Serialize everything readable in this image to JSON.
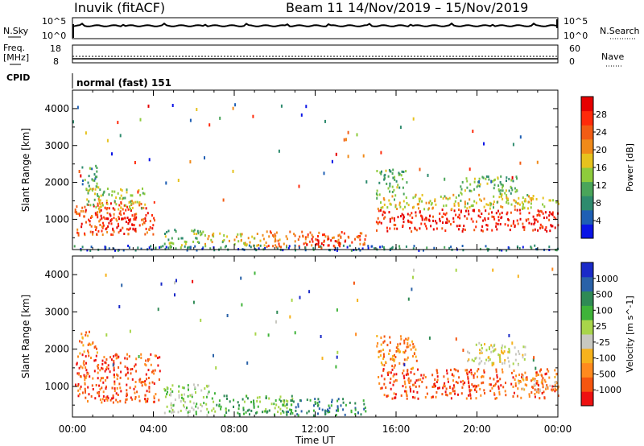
{
  "header": {
    "station": "Inuvik (fitACF)",
    "beam": "Beam 11",
    "date_range": "14/Nov/2019 – 15/Nov/2019"
  },
  "top_panels": {
    "nsky_label": "N.Sky",
    "nsky_ticks": [
      "10^5",
      "10^0"
    ],
    "nsearch_label": "N.Search",
    "nsearch_ticks": [
      "10^5",
      "10^0"
    ],
    "freq_label": "Freq.",
    "freq_unit": "[MHz]",
    "freq_ticks": [
      "18",
      "8"
    ],
    "nave_label": "Nave",
    "nave_ticks": [
      "60",
      "0"
    ],
    "cpid_label": "CPID",
    "cpid_text": "normal (fast) 151"
  },
  "colors": {
    "power_scale": [
      "#0a14e6",
      "#1e5fb4",
      "#2e8b6e",
      "#4aa55a",
      "#8ecb3c",
      "#e6c21e",
      "#f08a1a",
      "#f25c14",
      "#ff2a0a",
      "#e60000"
    ],
    "velocity_scale": [
      "#ee1111",
      "#f5550f",
      "#ff8a1e",
      "#f6b21c",
      "#c8c8c0",
      "#a8d54a",
      "#3fb339",
      "#2f8a55",
      "#2a62a8",
      "#1a2ac8"
    ]
  },
  "chart_data": [
    {
      "type": "heatmap",
      "name": "power",
      "ylabel": "Slant Range [km]",
      "ylim": [
        180,
        4500
      ],
      "xlim": [
        0,
        24
      ],
      "yticks": [
        "1000",
        "2000",
        "3000",
        "4000"
      ],
      "ytick_values": [
        1000,
        2000,
        3000,
        4000
      ],
      "colorbar_label": "Power [dB]",
      "colorbar_ticks": [
        "4",
        "8",
        "12",
        "16",
        "20",
        "24",
        "28"
      ],
      "colorbar_range": [
        0,
        30
      ],
      "regions": [
        {
          "t0": 0.1,
          "t1": 4.1,
          "r0": 600,
          "r1": 1500,
          "v": 24
        },
        {
          "t0": 0.6,
          "t1": 3.6,
          "r0": 1300,
          "r1": 1900,
          "v": 14
        },
        {
          "t0": 1.6,
          "t1": 3.3,
          "r0": 700,
          "r1": 1100,
          "v": 28
        },
        {
          "t0": 0.3,
          "t1": 1.2,
          "r0": 1900,
          "r1": 2500,
          "v": 9
        },
        {
          "t0": 4.5,
          "t1": 6.5,
          "r0": 250,
          "r1": 750,
          "v": 12
        },
        {
          "t0": 6.5,
          "t1": 9.5,
          "r0": 300,
          "r1": 650,
          "v": 16
        },
        {
          "t0": 9.5,
          "t1": 14.5,
          "r0": 250,
          "r1": 700,
          "v": 22
        },
        {
          "t0": 11.5,
          "t1": 13.5,
          "r0": 300,
          "r1": 500,
          "v": 28
        },
        {
          "t0": 15.0,
          "t1": 24.0,
          "r0": 700,
          "r1": 1300,
          "v": 27
        },
        {
          "t0": 15.0,
          "t1": 24.0,
          "r0": 1300,
          "r1": 1700,
          "v": 16
        },
        {
          "t0": 15.0,
          "t1": 16.5,
          "r0": 1700,
          "r1": 2400,
          "v": 11
        },
        {
          "t0": 19.0,
          "t1": 22.0,
          "r0": 1700,
          "r1": 2200,
          "v": 12
        },
        {
          "t0": 0.0,
          "t1": 24.0,
          "r0": 180,
          "r1": 320,
          "v": 6
        }
      ]
    },
    {
      "type": "heatmap",
      "name": "velocity",
      "ylabel": "Slant Range [km]",
      "ylim": [
        180,
        4500
      ],
      "xlim": [
        0,
        24
      ],
      "yticks": [
        "1000",
        "2000",
        "3000",
        "4000"
      ],
      "ytick_values": [
        1000,
        2000,
        3000,
        4000
      ],
      "colorbar_label": "Velocity [m s^-1]",
      "colorbar_ticks": [
        "1000",
        "500",
        "100",
        "25",
        "-25",
        "-100",
        "-500",
        "-1000"
      ],
      "regions": [
        {
          "t0": 0.1,
          "t1": 4.3,
          "r0": 600,
          "r1": 1900,
          "v": 1
        },
        {
          "t0": 0.3,
          "t1": 1.2,
          "r0": 1900,
          "r1": 2500,
          "v": 2
        },
        {
          "t0": 4.5,
          "t1": 7.0,
          "r0": 250,
          "r1": 1100,
          "v": 5
        },
        {
          "t0": 7.0,
          "t1": 11.0,
          "r0": 250,
          "r1": 800,
          "v": 6
        },
        {
          "t0": 10.5,
          "t1": 14.5,
          "r0": 250,
          "r1": 700,
          "v": 7
        },
        {
          "t0": 15.0,
          "t1": 24.0,
          "r0": 700,
          "r1": 1500,
          "v": 1
        },
        {
          "t0": 15.0,
          "t1": 17.0,
          "r0": 1500,
          "r1": 2400,
          "v": 2
        },
        {
          "t0": 19.5,
          "t1": 22.5,
          "r0": 1600,
          "r1": 2200,
          "v": 4
        },
        {
          "t0": 22.0,
          "t1": 24.0,
          "r0": 900,
          "r1": 1300,
          "v": 3
        }
      ]
    }
  ],
  "xaxis": {
    "ticks": [
      "00:00",
      "04:00",
      "08:00",
      "12:00",
      "16:00",
      "20:00",
      "00:00"
    ],
    "tick_hours": [
      0,
      4,
      8,
      12,
      16,
      20,
      24
    ],
    "label": "Time UT"
  }
}
